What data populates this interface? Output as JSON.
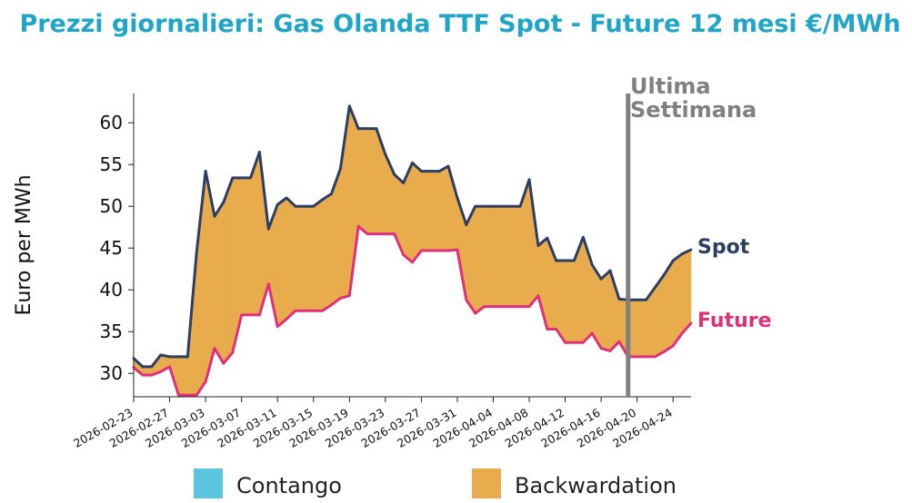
{
  "chart_data": {
    "type": "area",
    "title": "Prezzi giornalieri: Gas Olanda TTF Spot - Future 12 mesi €/MWh",
    "ylabel": "Euro per MWh",
    "ylim": [
      27.2,
      63.5
    ],
    "yticks": [
      30,
      35,
      40,
      45,
      50,
      55,
      60
    ],
    "xlim": [
      "2026-02-23",
      "2026-04-26"
    ],
    "xtick_labels": [
      "2026-02-23",
      "2026-02-27",
      "2026-03-03",
      "2026-03-07",
      "2026-03-11",
      "2026-03-15",
      "2026-03-19",
      "2026-03-23",
      "2026-03-27",
      "2026-03-31",
      "2026-04-04",
      "2026-04-08",
      "2026-04-12",
      "2026-04-16",
      "2026-04-20",
      "2026-04-24"
    ],
    "x": [
      "2026-02-23",
      "2026-02-24",
      "2026-02-25",
      "2026-02-26",
      "2026-02-27",
      "2026-02-28",
      "2026-03-01",
      "2026-03-02",
      "2026-03-03",
      "2026-03-04",
      "2026-03-05",
      "2026-03-06",
      "2026-03-07",
      "2026-03-08",
      "2026-03-09",
      "2026-03-10",
      "2026-03-11",
      "2026-03-12",
      "2026-03-13",
      "2026-03-14",
      "2026-03-15",
      "2026-03-16",
      "2026-03-17",
      "2026-03-18",
      "2026-03-19",
      "2026-03-20",
      "2026-03-21",
      "2026-03-22",
      "2026-03-23",
      "2026-03-24",
      "2026-03-25",
      "2026-03-26",
      "2026-03-27",
      "2026-03-28",
      "2026-03-29",
      "2026-03-30",
      "2026-03-31",
      "2026-04-01",
      "2026-04-02",
      "2026-04-03",
      "2026-04-04",
      "2026-04-05",
      "2026-04-06",
      "2026-04-07",
      "2026-04-08",
      "2026-04-09",
      "2026-04-10",
      "2026-04-11",
      "2026-04-12",
      "2026-04-13",
      "2026-04-14",
      "2026-04-15",
      "2026-04-16",
      "2026-04-17",
      "2026-04-18",
      "2026-04-19",
      "2026-04-20",
      "2026-04-21",
      "2026-04-22",
      "2026-04-23",
      "2026-04-24",
      "2026-04-25",
      "2026-04-26"
    ],
    "series": [
      {
        "name": "Spot",
        "color": "#2c3e62",
        "values": [
          31.8,
          30.8,
          30.8,
          32.2,
          32.0,
          32.0,
          32.0,
          44.5,
          54.2,
          48.8,
          50.5,
          53.4,
          53.4,
          53.4,
          56.5,
          47.3,
          50.2,
          51.0,
          50.0,
          50.0,
          50.0,
          50.8,
          51.5,
          54.5,
          62.0,
          59.3,
          59.3,
          59.3,
          56.2,
          53.8,
          52.8,
          55.2,
          54.2,
          54.2,
          54.2,
          54.8,
          51.0,
          47.8,
          50.0,
          50.0,
          50.0,
          50.0,
          50.0,
          50.0,
          53.2,
          45.3,
          46.2,
          43.5,
          43.5,
          43.5,
          46.3,
          43.0,
          41.3,
          42.3,
          38.9,
          38.8,
          38.8,
          38.8,
          40.3,
          41.8,
          43.5,
          44.3,
          44.8
        ]
      },
      {
        "name": "Future",
        "color": "#e0307a",
        "values": [
          30.7,
          29.8,
          29.8,
          30.2,
          30.8,
          27.4,
          27.4,
          27.4,
          29.0,
          33.0,
          31.2,
          32.5,
          37.0,
          37.0,
          37.0,
          40.7,
          35.6,
          36.5,
          37.5,
          37.5,
          37.5,
          37.5,
          38.2,
          39.0,
          39.3,
          47.6,
          46.7,
          46.7,
          46.7,
          46.7,
          44.2,
          43.3,
          44.7,
          44.7,
          44.7,
          44.7,
          44.8,
          38.8,
          37.2,
          38.0,
          38.0,
          38.0,
          38.0,
          38.0,
          38.0,
          39.3,
          35.3,
          35.3,
          33.7,
          33.7,
          33.7,
          34.8,
          33.0,
          32.7,
          33.8,
          32.0,
          32.0,
          32.0,
          32.0,
          32.6,
          33.3,
          34.8,
          36.0
        ]
      }
    ],
    "regions": {
      "contango_color": "#5bc6de",
      "backwardation_color": "#e8ac4d"
    },
    "vline": {
      "x": "2026-04-19",
      "label_lines": [
        "Ultima",
        "Settimana"
      ],
      "color": "#808080"
    },
    "legend": {
      "placement": "bottom",
      "items": [
        {
          "label": "Contango",
          "color": "#5bc6de"
        },
        {
          "label": "Backwardation",
          "color": "#e8ac4d"
        }
      ]
    }
  }
}
